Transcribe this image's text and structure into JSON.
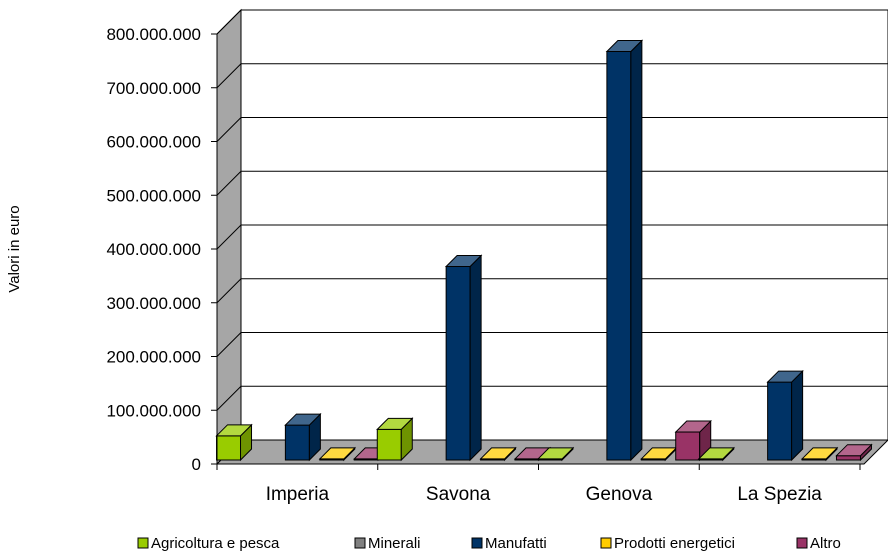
{
  "chart_data": {
    "type": "bar",
    "title": "",
    "xlabel": "",
    "ylabel": "Valori in euro",
    "ylim": [
      0,
      800000000
    ],
    "yticks": [
      0,
      100000000,
      200000000,
      300000000,
      400000000,
      500000000,
      600000000,
      700000000,
      800000000
    ],
    "ytick_labels": [
      "0",
      "100.000.000",
      "200.000.000",
      "300.000.000",
      "400.000.000",
      "500.000.000",
      "600.000.000",
      "700.000.000",
      "800.000.000"
    ],
    "categories": [
      "Imperia",
      "Savona",
      "Genova",
      "La Spezia"
    ],
    "series": [
      {
        "name": "Agricoltura e pesca",
        "color": "#99cc00",
        "values": [
          45000000,
          57000000,
          2000000,
          2000000
        ]
      },
      {
        "name": "Minerali",
        "color": "#808080",
        "values": [
          0,
          0,
          0,
          0
        ]
      },
      {
        "name": "Manufatti",
        "color": "#003366",
        "values": [
          65000000,
          360000000,
          760000000,
          145000000
        ]
      },
      {
        "name": "Prodotti energetici",
        "color": "#ffcc00",
        "values": [
          2000000,
          2000000,
          2000000,
          2000000
        ]
      },
      {
        "name": "Altro",
        "color": "#993366",
        "values": [
          2000000,
          2000000,
          52000000,
          8000000
        ]
      }
    ],
    "grid": true,
    "legend_position": "bottom",
    "style": "3d-column"
  }
}
